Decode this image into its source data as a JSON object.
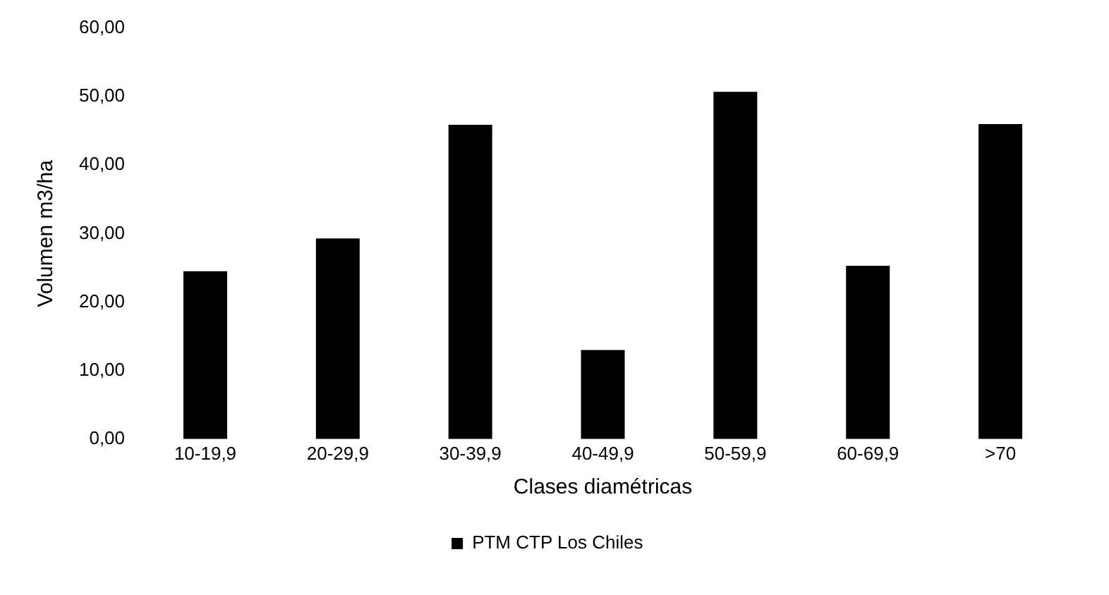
{
  "chart_data": {
    "type": "bar",
    "xlabel": "Clases diamétricas",
    "ylabel": "Volumen m3/ha",
    "categories": [
      "10-19,9",
      "20-29,9",
      "30-39,9",
      "40-49,9",
      "50-59,9",
      "60-69,9",
      ">70"
    ],
    "series": [
      {
        "name": "PTM CTP Los Chiles",
        "color": "#000000",
        "values": [
          24.5,
          29.3,
          45.9,
          13.0,
          50.7,
          25.3,
          46.0
        ]
      }
    ],
    "ylim": [
      0,
      60
    ],
    "yticks": [
      {
        "value": 0,
        "label": "0,00"
      },
      {
        "value": 10,
        "label": "10,00"
      },
      {
        "value": 20,
        "label": "20,00"
      },
      {
        "value": 30,
        "label": "30,00"
      },
      {
        "value": 40,
        "label": "40,00"
      },
      {
        "value": 50,
        "label": "50,00"
      },
      {
        "value": 60,
        "label": "60,00"
      }
    ],
    "grid": false,
    "legend": "bottom"
  }
}
